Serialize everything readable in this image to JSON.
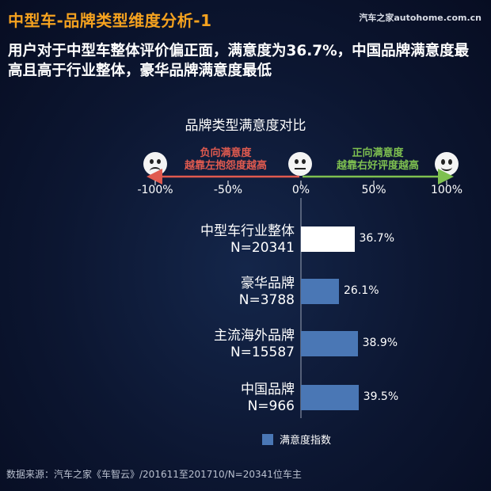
{
  "header": {
    "title": "中型车-品牌类型维度分析-1",
    "watermark": "汽车之家autohome.com.cn",
    "headline": "用户对于中型车整体评价偏正面，满意度为36.7%，中国品牌满意度最高且高于行业整体，豪华品牌满意度最低"
  },
  "scale": {
    "negative_label_line1": "负向满意度",
    "negative_label_line2": "越靠左抱怨度越高",
    "positive_label_line1": "正向满意度",
    "positive_label_line2": "越靠右好评度越高",
    "negative_color": "#e05a4f",
    "positive_color": "#7ec050",
    "faces": [
      "sad-face-icon",
      "neutral-face-icon",
      "happy-face-icon"
    ]
  },
  "chart_data": {
    "type": "bar",
    "orientation": "horizontal",
    "title": "品牌类型满意度对比",
    "xlim": [
      -100,
      100
    ],
    "xticks": [
      -100,
      -50,
      0,
      50,
      100
    ],
    "xtick_labels": [
      "-100%",
      "-50%",
      "0%",
      "50%",
      "100%"
    ],
    "categories": [
      {
        "name": "中型车行业整体",
        "n": "N=20341"
      },
      {
        "name": "豪华品牌",
        "n": "N=3788"
      },
      {
        "name": "主流海外品牌",
        "n": "N=15587"
      },
      {
        "name": "中国品牌",
        "n": "N=966"
      }
    ],
    "series": [
      {
        "name": "满意度指数",
        "values": [
          36.7,
          26.1,
          38.9,
          39.5
        ],
        "labels": [
          "36.7%",
          "26.1%",
          "38.9%",
          "39.5%"
        ],
        "colors": [
          "#ffffff",
          "#4a77b5",
          "#4a77b5",
          "#4a77b5"
        ]
      }
    ],
    "legend_position": "bottom"
  },
  "footnote": "数据来源：汽车之家《车智云》/201611至201710/N=20341位车主"
}
